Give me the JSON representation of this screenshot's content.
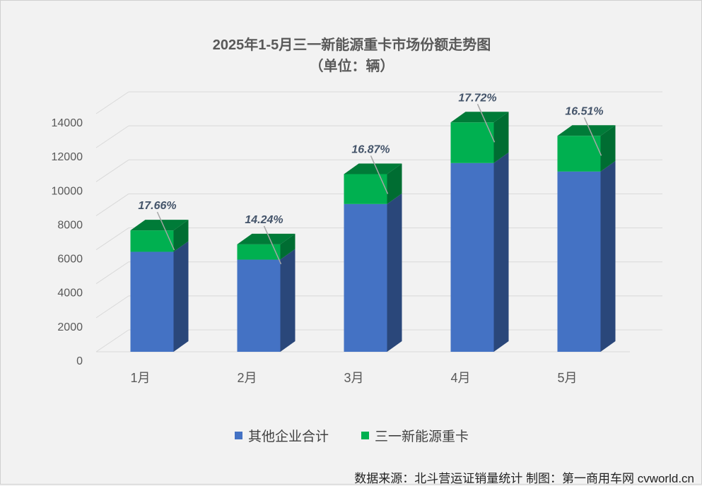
{
  "chart_data": {
    "type": "bar",
    "stacked": true,
    "style": "3d-column",
    "title": "2025年1-5月三一新能源重卡市场份额走势图",
    "subtitle": "（单位：辆）",
    "categories": [
      "1月",
      "2月",
      "3月",
      "4月",
      "5月"
    ],
    "series": [
      {
        "name": "其他企业合计",
        "color": "#4472c4",
        "values": [
          5880,
          5420,
          8690,
          11100,
          10600
        ]
      },
      {
        "name": "三一新能源重卡",
        "color": "#00b050",
        "values": [
          1260,
          900,
          1760,
          2390,
          2100
        ]
      }
    ],
    "data_labels": [
      "17.66%",
      "14.24%",
      "16.87%",
      "17.72%",
      "16.51%"
    ],
    "y_ticks": [
      0,
      2000,
      4000,
      6000,
      8000,
      10000,
      12000,
      14000
    ],
    "ylim": [
      0,
      14000
    ],
    "grid": true,
    "legend_position": "bottom"
  },
  "legend": {
    "item1": "其他企业合计",
    "item2": "三一新能源重卡"
  },
  "source": "数据来源：北斗营运证销量统计 制图：第一商用车网 cvworld.cn"
}
